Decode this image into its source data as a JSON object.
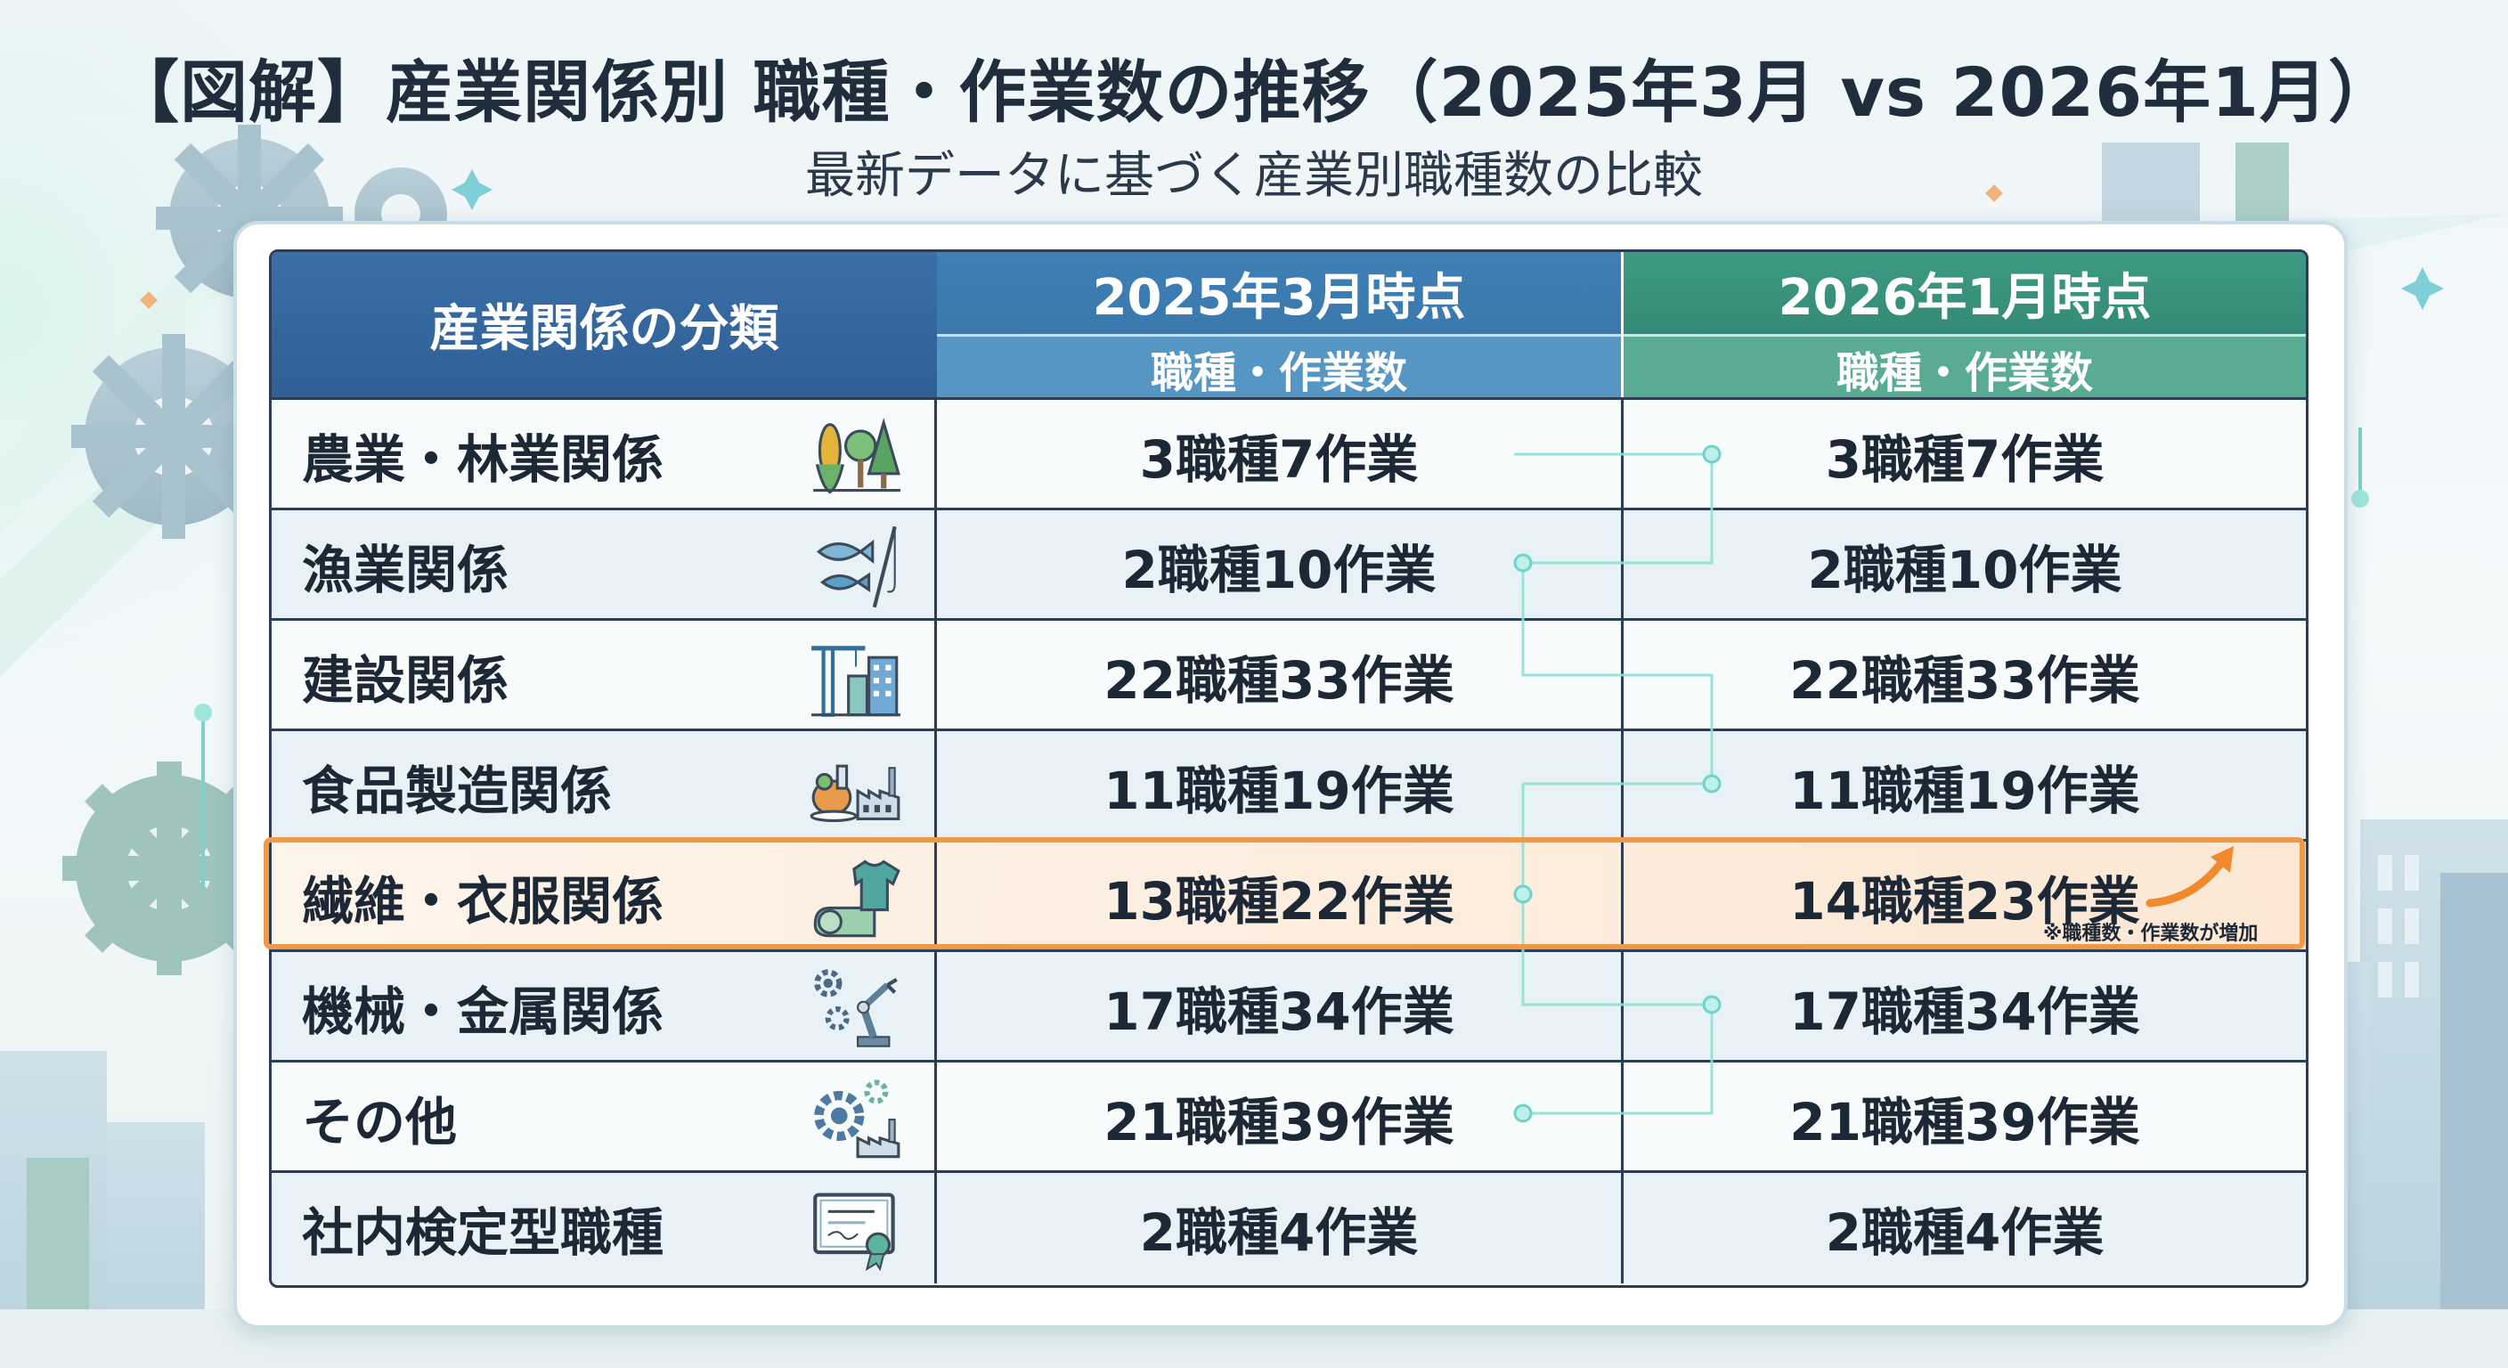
{
  "title": "【図解】産業関係別 職種・作業数の推移（2025年3月 vs 2026年1月）",
  "subtitle": "最新データに基づく産業別職種数の比較",
  "table": {
    "category_header": "産業関係の分類",
    "col_a_header": "2025年3月時点",
    "col_a_sub": "職種・作業数",
    "col_b_header": "2026年1月時点",
    "col_b_sub": "職種・作業数",
    "rows": [
      {
        "category": "農業・林業関係",
        "icon": "agriculture-forestry-icon",
        "v2025": "3職種7作業",
        "v2026": "3職種7作業"
      },
      {
        "category": "漁業関係",
        "icon": "fishing-icon",
        "v2025": "2職種10作業",
        "v2026": "2職種10作業"
      },
      {
        "category": "建設関係",
        "icon": "construction-icon",
        "v2025": "22職種33作業",
        "v2026": "22職種33作業"
      },
      {
        "category": "食品製造関係",
        "icon": "food-factory-icon",
        "v2025": "11職種19作業",
        "v2026": "11職種19作業"
      },
      {
        "category": "繊維・衣服関係",
        "icon": "textile-clothing-icon",
        "v2025": "13職種22作業",
        "v2026": "14職種23作業",
        "highlight": true
      },
      {
        "category": "機械・金属関係",
        "icon": "machinery-robot-arm-icon",
        "v2025": "17職種34作業",
        "v2026": "17職種34作業"
      },
      {
        "category": "その他",
        "icon": "gear-factory-icon",
        "v2025": "21職種39作業",
        "v2026": "21職種39作業"
      },
      {
        "category": "社内検定型職種",
        "icon": "certificate-icon",
        "v2025": "2職種4作業",
        "v2026": "2職種4作業"
      }
    ]
  },
  "highlight_note": "※職種数・作業数が増加",
  "colors": {
    "header_category": "#2f5f96",
    "header_2025": "#3f7fb6",
    "header_2026": "#3a8f7c",
    "highlight_border": "#ee9a48",
    "highlight_arrow": "#f08a2c"
  }
}
